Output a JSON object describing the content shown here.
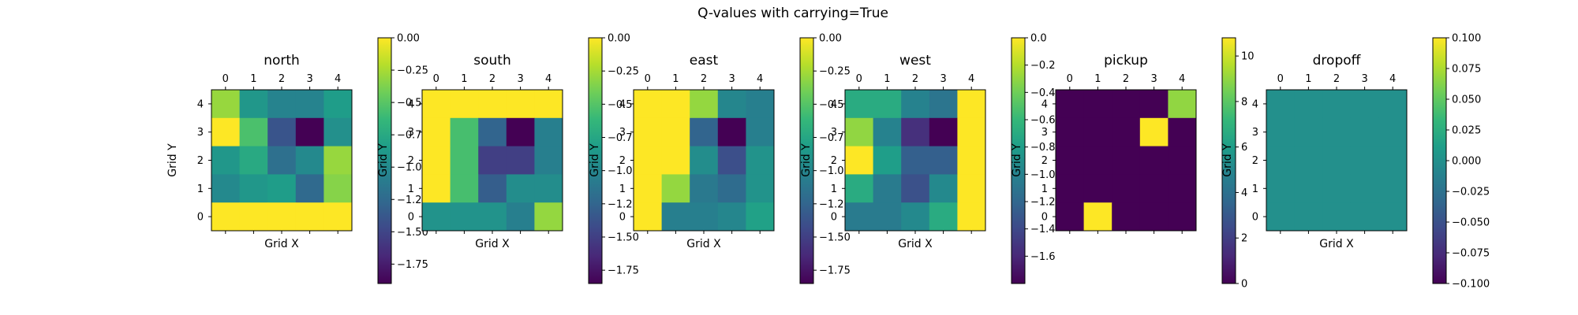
{
  "figure": {
    "title": "Q-values with carrying=True"
  },
  "colors": {
    "viridis": [
      "#440154",
      "#482878",
      "#3e4989",
      "#31688e",
      "#26828e",
      "#1f9e89",
      "#35b779",
      "#6ece58",
      "#b5de2b",
      "#fde725"
    ]
  },
  "chart_data": [
    {
      "type": "heatmap",
      "title": "north",
      "xlabel": "Grid X",
      "ylabel": "Grid Y",
      "x_ticks": [
        "0",
        "1",
        "2",
        "3",
        "4"
      ],
      "y_ticks": [
        "0",
        "1",
        "2",
        "3",
        "4"
      ],
      "vmin": -1.9,
      "vmax": 0.0,
      "colorbar_ticks": [
        0.0,
        -0.25,
        -0.5,
        -0.75,
        -1.0,
        -1.25,
        -1.5,
        -1.75
      ],
      "colorbar_labels": [
        "0.00",
        "−0.25",
        "−0.50",
        "−0.75",
        "−1.00",
        "−1.25",
        "−1.50",
        "−1.75"
      ],
      "values": [
        [
          -0.3,
          -0.9,
          -1.05,
          -1.05,
          -0.85
        ],
        [
          0.0,
          -0.55,
          -1.4,
          -1.9,
          -0.95
        ],
        [
          -0.9,
          -0.75,
          -1.2,
          -1.0,
          -0.3
        ],
        [
          -1.0,
          -0.9,
          -0.85,
          -1.25,
          -0.35
        ],
        [
          0.0,
          0.0,
          0.0,
          0.0,
          0.0
        ]
      ]
    },
    {
      "type": "heatmap",
      "title": "south",
      "xlabel": "Grid X",
      "ylabel": "Grid Y",
      "x_ticks": [
        "0",
        "1",
        "2",
        "3",
        "4"
      ],
      "y_ticks": [
        "0",
        "1",
        "2",
        "3",
        "4"
      ],
      "vmin": -1.85,
      "vmax": 0.0,
      "colorbar_ticks": [
        0.0,
        -0.25,
        -0.5,
        -0.75,
        -1.0,
        -1.25,
        -1.5,
        -1.75
      ],
      "colorbar_labels": [
        "0.00",
        "−0.25",
        "−0.50",
        "−0.75",
        "−1.00",
        "−1.25",
        "−1.50",
        "−1.75"
      ],
      "values": [
        [
          0.0,
          0.0,
          0.0,
          0.0,
          0.0
        ],
        [
          0.0,
          -0.55,
          -1.25,
          -1.85,
          -1.05
        ],
        [
          0.0,
          -0.55,
          -1.5,
          -1.5,
          -1.05
        ],
        [
          0.0,
          -0.55,
          -1.3,
          -0.95,
          -0.95
        ],
        [
          -0.9,
          -0.9,
          -0.9,
          -1.05,
          -0.3
        ]
      ]
    },
    {
      "type": "heatmap",
      "title": "east",
      "xlabel": "Grid X",
      "ylabel": "Grid Y",
      "x_ticks": [
        "0",
        "1",
        "2",
        "3",
        "4"
      ],
      "y_ticks": [
        "0",
        "1",
        "2",
        "3",
        "4"
      ],
      "vmin": -1.85,
      "vmax": 0.0,
      "colorbar_ticks": [
        0.0,
        -0.25,
        -0.5,
        -0.75,
        -1.0,
        -1.25,
        -1.5,
        -1.75
      ],
      "colorbar_labels": [
        "0.00",
        "−0.25",
        "−0.50",
        "−0.75",
        "−1.00",
        "−1.25",
        "−1.50",
        "−1.75"
      ],
      "values": [
        [
          0.0,
          0.0,
          -0.3,
          -1.0,
          -1.05
        ],
        [
          0.0,
          0.0,
          -1.25,
          -1.85,
          -1.05
        ],
        [
          0.0,
          0.0,
          -0.95,
          -1.4,
          -0.9
        ],
        [
          0.0,
          -0.3,
          -1.1,
          -1.2,
          -0.9
        ],
        [
          0.0,
          -1.05,
          -1.05,
          -1.0,
          -0.8
        ]
      ]
    },
    {
      "type": "heatmap",
      "title": "west",
      "xlabel": "Grid X",
      "ylabel": "Grid Y",
      "x_ticks": [
        "0",
        "1",
        "2",
        "3",
        "4"
      ],
      "y_ticks": [
        "0",
        "1",
        "2",
        "3",
        "4"
      ],
      "vmin": -1.8,
      "vmax": 0.0,
      "colorbar_ticks": [
        0.0,
        -0.2,
        -0.4,
        -0.6,
        -0.8,
        -1.0,
        -1.2,
        -1.4,
        -1.6
      ],
      "colorbar_labels": [
        "0.0",
        "−0.2",
        "−0.4",
        "−0.6",
        "−0.8",
        "−1.0",
        "−1.2",
        "−1.4",
        "−1.6"
      ],
      "values": [
        [
          -0.7,
          -0.7,
          -1.0,
          -1.1,
          0.0
        ],
        [
          -0.3,
          -1.0,
          -1.55,
          -1.8,
          0.0
        ],
        [
          0.0,
          -0.8,
          -1.25,
          -1.25,
          0.0
        ],
        [
          -0.7,
          -1.05,
          -1.35,
          -0.95,
          0.0
        ],
        [
          -1.05,
          -1.05,
          -0.95,
          -0.7,
          0.0
        ]
      ]
    },
    {
      "type": "heatmap",
      "title": "pickup",
      "xlabel": "",
      "ylabel": "Grid Y",
      "x_ticks": [
        "0",
        "1",
        "2",
        "3",
        "4"
      ],
      "y_ticks": [
        "0",
        "1",
        "2",
        "3",
        "4"
      ],
      "vmin": 0.0,
      "vmax": 10.8,
      "colorbar_ticks": [
        0,
        2,
        4,
        6,
        8,
        10
      ],
      "colorbar_labels": [
        "0",
        "2",
        "4",
        "6",
        "8",
        "10"
      ],
      "values": [
        [
          0.0,
          0.0,
          0.0,
          0.0,
          9.0
        ],
        [
          0.0,
          0.0,
          0.0,
          10.8,
          0.0
        ],
        [
          0.0,
          0.0,
          0.0,
          0.0,
          0.0
        ],
        [
          0.0,
          0.0,
          0.0,
          0.0,
          0.0
        ],
        [
          0.0,
          10.8,
          0.0,
          0.0,
          0.0
        ]
      ]
    },
    {
      "type": "heatmap",
      "title": "dropoff",
      "xlabel": "Grid X",
      "ylabel": "Grid Y",
      "x_ticks": [
        "0",
        "1",
        "2",
        "3",
        "4"
      ],
      "y_ticks": [
        "0",
        "1",
        "2",
        "3",
        "4"
      ],
      "vmin": -0.1,
      "vmax": 0.1,
      "colorbar_ticks": [
        0.1,
        0.075,
        0.05,
        0.025,
        0.0,
        -0.025,
        -0.05,
        -0.075,
        -0.1
      ],
      "colorbar_labels": [
        "0.100",
        "0.075",
        "0.050",
        "0.025",
        "0.000",
        "−0.025",
        "−0.050",
        "−0.075",
        "−0.100"
      ],
      "values": [
        [
          0.0,
          0.0,
          0.0,
          0.0,
          0.0
        ],
        [
          0.0,
          0.0,
          0.0,
          0.0,
          0.0
        ],
        [
          0.0,
          0.0,
          0.0,
          0.0,
          0.0
        ],
        [
          0.0,
          0.0,
          0.0,
          0.0,
          0.0
        ],
        [
          0.0,
          0.0,
          0.0,
          0.0,
          0.0
        ]
      ]
    }
  ]
}
